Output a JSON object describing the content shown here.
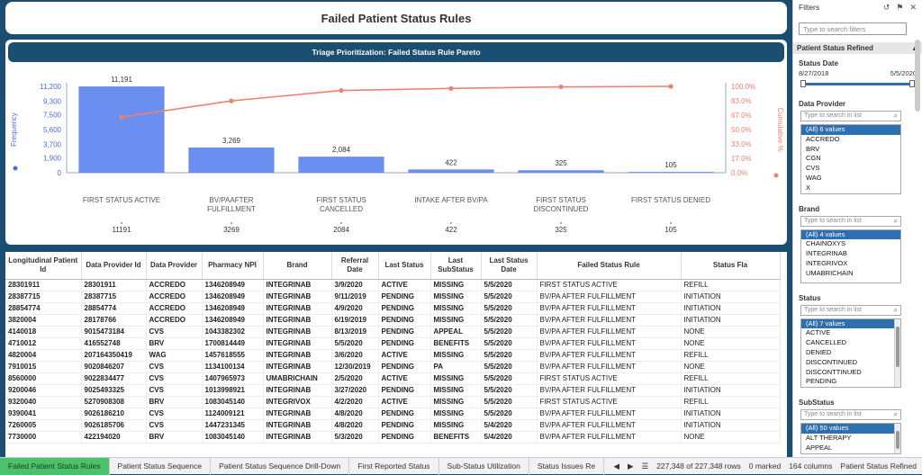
{
  "page_title": "Failed Patient Status Rules",
  "chart_title": "Triage Prioritization: Failed Status Rule Pareto",
  "chart_data": {
    "type": "bar",
    "categories": [
      "FIRST STATUS ACTIVE",
      "BV/PAAFTER FULFILLMENT",
      "FIRST STATUS CANCELLED",
      "INTAKE AFTER BV/PA",
      "FIRST STATUS DISCONTINUED",
      "FIRST STATUS DENIED"
    ],
    "category_label_lines": [
      [
        "FIRST STATUS ACTIVE"
      ],
      [
        "BV/PAAFTER",
        "FULFILLMENT"
      ],
      [
        "FIRST STATUS",
        "CANCELLED"
      ],
      [
        "INTAKE AFTER BV/PA"
      ],
      [
        "FIRST STATUS",
        "DISCONTINUED"
      ],
      [
        "FIRST STATUS DENIED"
      ]
    ],
    "values": [
      11191,
      3269,
      2084,
      422,
      325,
      105
    ],
    "value_labels": [
      "11,191",
      "3,269",
      "2,084",
      "422",
      "325",
      "105"
    ],
    "axis_values": [
      "11191",
      "3269",
      "2084",
      "422",
      "325",
      "105"
    ],
    "cumulative_pct": [
      64.4,
      83.2,
      95.2,
      97.6,
      99.4,
      100.0
    ],
    "ylabel_left": "Frequency",
    "ylabel_right": "Cumulative %",
    "yticks_left": [
      0,
      1900,
      3700,
      5600,
      7500,
      9300,
      11200
    ],
    "yticks_left_labels": [
      "0",
      "1,900",
      "3,700",
      "5,600",
      "7,500",
      "9,300",
      "11,200"
    ],
    "yticks_right_labels": [
      "0.0%",
      "17.0%",
      "33.0%",
      "50.0%",
      "67.0%",
      "83.0%",
      "100.0%"
    ],
    "ylim": [
      0,
      11200
    ],
    "bar_color": "#6a8ff0",
    "line_color": "#f08070",
    "grid": false
  },
  "table": {
    "headers": [
      "Longitudinal Patient Id",
      "Data Provider Id",
      "Data Provider",
      "Pharmacy NPI",
      "Brand",
      "Referral Date",
      "Last Status",
      "Last SubStatus",
      "Last Status Date",
      "Failed Status Rule",
      "Status Fla"
    ],
    "rows": [
      [
        "28301911",
        "28301911",
        "ACCREDO",
        "1346208949",
        "INTEGRINAB",
        "3/9/2020",
        "ACTIVE",
        "MISSING",
        "5/5/2020",
        "FIRST STATUS ACTIVE",
        "REFILL"
      ],
      [
        "28387715",
        "28387715",
        "ACCREDO",
        "1346208949",
        "INTEGRINAB",
        "9/11/2019",
        "PENDING",
        "MISSING",
        "5/5/2020",
        "BV/PA AFTER FULFILLMENT",
        "INITIATION"
      ],
      [
        "28854774",
        "28854774",
        "ACCREDO",
        "1346208949",
        "INTEGRINAB",
        "4/9/2020",
        "PENDING",
        "MISSING",
        "5/5/2020",
        "BV/PA AFTER FULFILLMENT",
        "INITIATION"
      ],
      [
        "3820004",
        "28178766",
        "ACCREDO",
        "1346208949",
        "INTEGRINAB",
        "6/19/2019",
        "PENDING",
        "MISSING",
        "5/5/2020",
        "BV/PA AFTER FULFILLMENT",
        "INITIATION"
      ],
      [
        "4140018",
        "9015473184",
        "CVS",
        "1043382302",
        "INTEGRINAB",
        "8/13/2019",
        "PENDING",
        "APPEAL",
        "5/5/2020",
        "BV/PA AFTER FULFILLMENT",
        "NONE"
      ],
      [
        "4710012",
        "416552748",
        "BRV",
        "1700814449",
        "INTEGRINAB",
        "5/5/2020",
        "PENDING",
        "BENEFITS",
        "5/5/2020",
        "BV/PA AFTER FULFILLMENT",
        "NONE"
      ],
      [
        "4820004",
        "207164350419",
        "WAG",
        "1457618555",
        "INTEGRINAB",
        "3/6/2020",
        "ACTIVE",
        "MISSING",
        "5/5/2020",
        "BV/PA AFTER FULFILLMENT",
        "REFILL"
      ],
      [
        "7910015",
        "9020846207",
        "CVS",
        "1134100134",
        "INTEGRINAB",
        "12/30/2019",
        "PENDING",
        "PA",
        "5/5/2020",
        "BV/PA AFTER FULFILLMENT",
        "NONE"
      ],
      [
        "8560000",
        "9022834477",
        "CVS",
        "1407965973",
        "UMABRICHAIN",
        "2/5/2020",
        "ACTIVE",
        "MISSING",
        "5/5/2020",
        "FIRST STATUS ACTIVE",
        "REFILL"
      ],
      [
        "9200046",
        "9025493325",
        "CVS",
        "1013998921",
        "INTEGRINAB",
        "3/27/2020",
        "PENDING",
        "MISSING",
        "5/5/2020",
        "BV/PA AFTER FULFILLMENT",
        "INITIATION"
      ],
      [
        "9320040",
        "5270908308",
        "BRV",
        "1083045140",
        "INTEGRIVOX",
        "4/2/2020",
        "ACTIVE",
        "MISSING",
        "5/5/2020",
        "FIRST STATUS ACTIVE",
        "REFILL"
      ],
      [
        "9390041",
        "9026186210",
        "CVS",
        "1124009121",
        "INTEGRINAB",
        "4/8/2020",
        "PENDING",
        "MISSING",
        "5/5/2020",
        "BV/PA AFTER FULFILLMENT",
        "INITIATION"
      ],
      [
        "7260005",
        "9026185706",
        "CVS",
        "1447231345",
        "INTEGRINAB",
        "4/8/2020",
        "PENDING",
        "MISSING",
        "5/4/2020",
        "BV/PA AFTER FULFILLMENT",
        "INITIATION"
      ],
      [
        "7730000",
        "422194020",
        "BRV",
        "1083045140",
        "INTEGRINAB",
        "5/3/2020",
        "PENDING",
        "BENEFITS",
        "5/4/2020",
        "BV/PA AFTER FULFILLMENT",
        "NONE"
      ]
    ]
  },
  "filters": {
    "title": "Filters",
    "search_placeholder": "Type to search filters",
    "section_title": "Patient Status Refined",
    "status_date": {
      "label": "Status Date",
      "start": "8/27/2018",
      "end": "5/5/2020"
    },
    "list_search_placeholder": "Type to search in list",
    "data_provider": {
      "label": "Data Provider",
      "items": [
        "(All) 6 values",
        "ACCREDO",
        "BRV",
        "CGN",
        "CVS",
        "WAG",
        "X"
      ]
    },
    "brand": {
      "label": "Brand",
      "items": [
        "(All) 4 values",
        "CHAINOXYS",
        "INTEGRINAB",
        "INTEGRIVOX",
        "UMABRICHAIN"
      ]
    },
    "status": {
      "label": "Status",
      "items": [
        "(All) 7 values",
        "ACTIVE",
        "CANCELLED",
        "DENIED",
        "DISCONTINUED",
        "DISCONTTINUED",
        "PENDING"
      ]
    },
    "substatus": {
      "label": "SubStatus",
      "items": [
        "(All) 50 values",
        "ALT THERAPY",
        "APPEAL"
      ]
    }
  },
  "tabs": [
    "Failed Patient Status Rules",
    "Patient Status Sequence",
    "Patient Status Sequence Drill-Down",
    "First Reported Status",
    "Sub-Status Utilization",
    "Status Issues Re"
  ],
  "statusbar": {
    "rows": "227,348 of 227,348 rows",
    "marked": "0 marked",
    "columns": "164 columns",
    "page": "Patient Status Refined"
  }
}
